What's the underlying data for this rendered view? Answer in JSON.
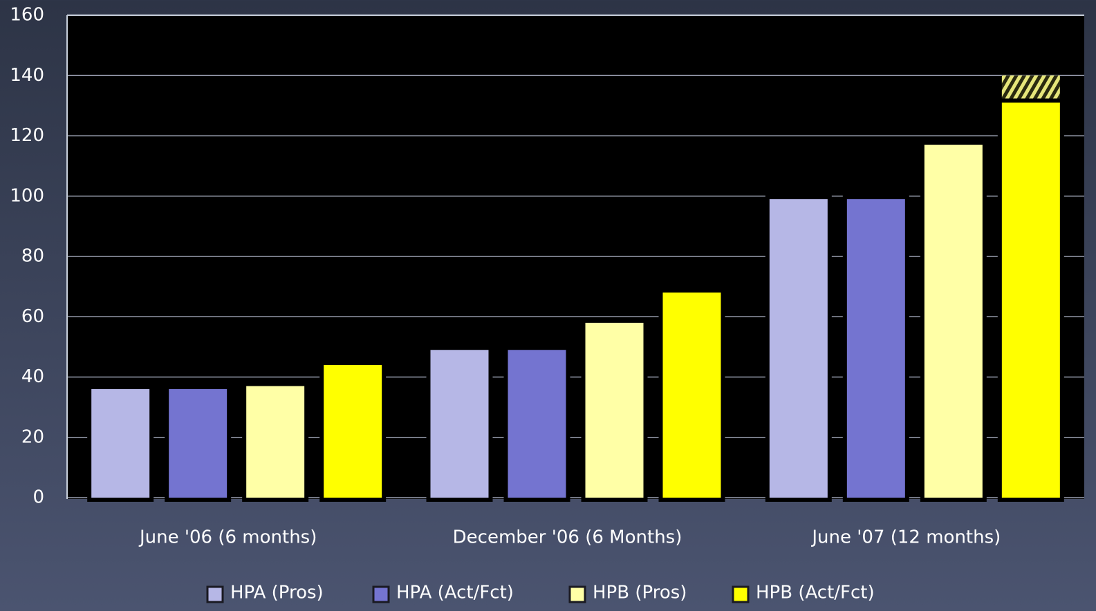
{
  "chart_data": {
    "type": "bar",
    "categories": [
      "June '06 (6 months)",
      "December '06 (6 Months)",
      "June '07 (12 months)"
    ],
    "series": [
      {
        "name": "HPA (Pros)",
        "color": "#b6b7e6",
        "values": [
          36,
          49,
          99
        ]
      },
      {
        "name": "HPA (Act/Fct)",
        "color": "#7474d0",
        "values": [
          36,
          49,
          99
        ]
      },
      {
        "name": "HPB (Pros)",
        "color": "#ffffa6",
        "values": [
          37,
          58,
          117
        ]
      },
      {
        "name": "HPB (Act/Fct)",
        "color": "#ffff00",
        "values": [
          44,
          68,
          131
        ],
        "hatched_values": [
          null,
          null,
          9
        ]
      }
    ],
    "ylim": [
      0,
      160
    ],
    "yticks": [
      0,
      20,
      40,
      60,
      80,
      100,
      120,
      140,
      160
    ],
    "grid": true,
    "legend": "bottom"
  }
}
